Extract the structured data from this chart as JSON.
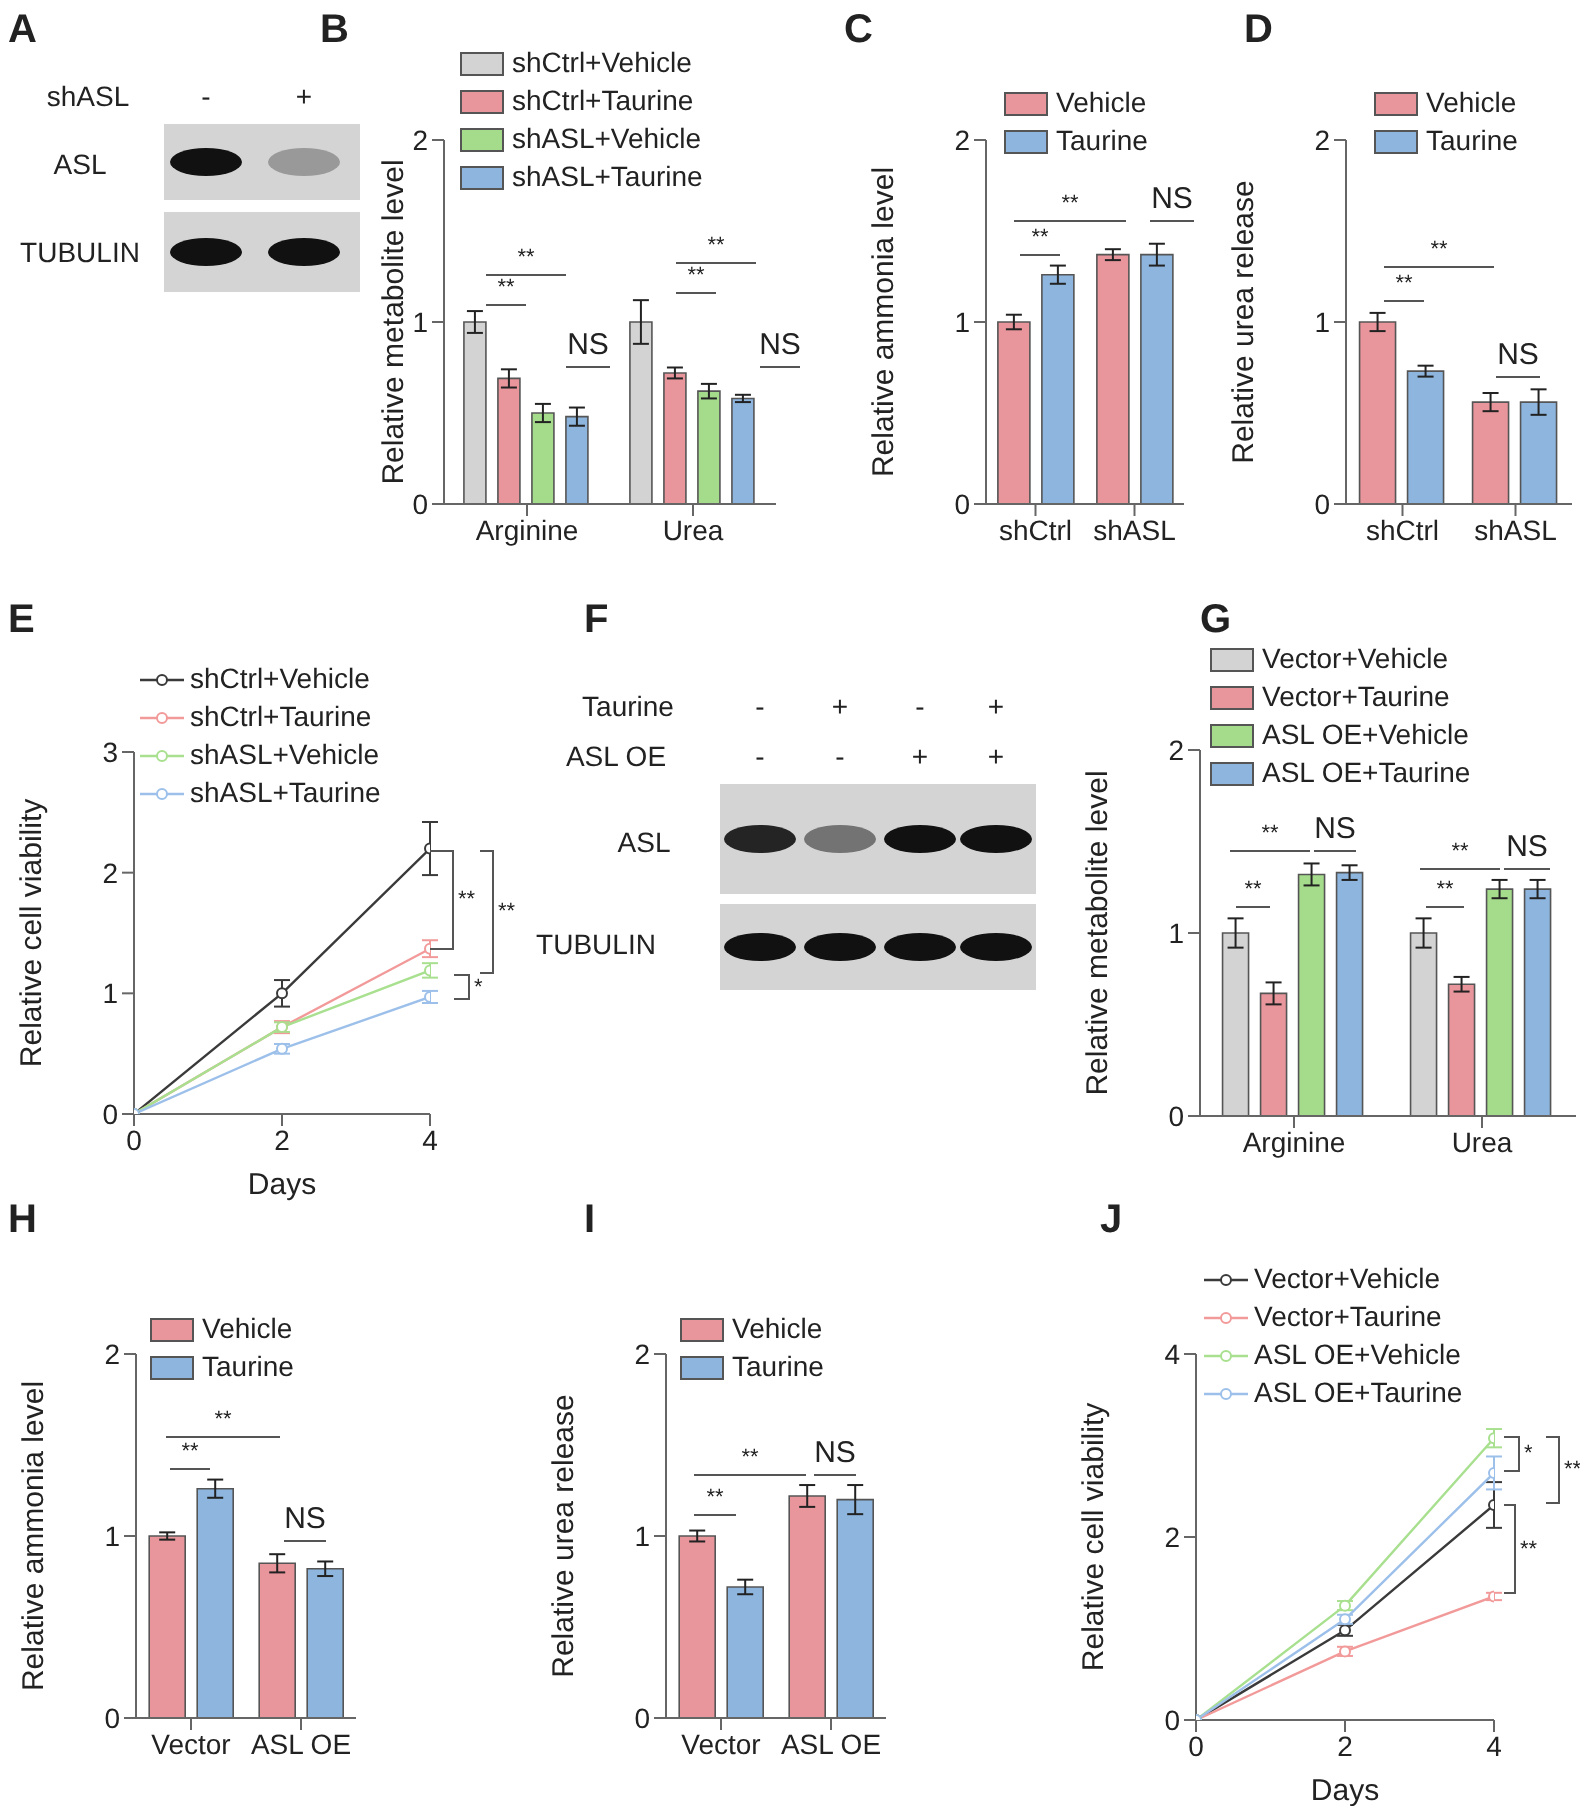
{
  "chart_data": [
    {
      "type": "other",
      "title": "A",
      "annotations": [
        "shASL",
        "-",
        "+",
        "ASL",
        "TUBULIN"
      ]
    },
    {
      "type": "bar",
      "title": "B",
      "ylabel": "Relative metabolite level",
      "categories": [
        "Arginine",
        "Urea"
      ],
      "ylim": [
        0,
        2
      ],
      "yticks": [
        0,
        1,
        2
      ],
      "legend": "top left",
      "annotations": [
        "**",
        "**",
        "NS",
        "**",
        "**",
        "NS"
      ],
      "series": [
        {
          "name": "shCtrl+Vehicle",
          "color": "#d3d3d3",
          "values": [
            1.0,
            1.0
          ],
          "errors": [
            0.06,
            0.12
          ]
        },
        {
          "name": "shCtrl+Taurine",
          "color": "#e8959c",
          "values": [
            0.69,
            0.72
          ],
          "errors": [
            0.05,
            0.03
          ]
        },
        {
          "name": "shASL+Vehicle",
          "color": "#a5dc8c",
          "values": [
            0.5,
            0.62
          ],
          "errors": [
            0.05,
            0.04
          ]
        },
        {
          "name": "shASL+Taurine",
          "color": "#8db5de",
          "values": [
            0.48,
            0.58
          ],
          "errors": [
            0.05,
            0.02
          ]
        }
      ]
    },
    {
      "type": "bar",
      "title": "C",
      "ylabel": "Relative ammonia level",
      "categories": [
        "shCtrl",
        "shASL"
      ],
      "ylim": [
        0,
        2
      ],
      "yticks": [
        0,
        1,
        2
      ],
      "legend": "top left",
      "annotations": [
        "**",
        "**",
        "NS"
      ],
      "series": [
        {
          "name": "Vehicle",
          "color": "#e8959c",
          "values": [
            1.0,
            1.37
          ],
          "errors": [
            0.04,
            0.03
          ]
        },
        {
          "name": "Taurine",
          "color": "#8db5de",
          "values": [
            1.26,
            1.37
          ],
          "errors": [
            0.05,
            0.06
          ]
        }
      ]
    },
    {
      "type": "bar",
      "title": "D",
      "ylabel": "Relative urea release",
      "categories": [
        "shCtrl",
        "shASL"
      ],
      "ylim": [
        0,
        2
      ],
      "yticks": [
        0,
        1,
        2
      ],
      "legend": "top left",
      "annotations": [
        "**",
        "**",
        "NS"
      ],
      "series": [
        {
          "name": "Vehicle",
          "color": "#e8959c",
          "values": [
            1.0,
            0.56
          ],
          "errors": [
            0.05,
            0.05
          ]
        },
        {
          "name": "Taurine",
          "color": "#8db5de",
          "values": [
            0.73,
            0.56
          ],
          "errors": [
            0.03,
            0.07
          ]
        }
      ]
    },
    {
      "type": "line",
      "title": "E",
      "xlabel": "Days",
      "ylabel": "Relative cell viability",
      "x": [
        0,
        2,
        4
      ],
      "xlim": [
        0,
        4
      ],
      "xticks": [
        0,
        2,
        4
      ],
      "ylim": [
        0,
        3
      ],
      "yticks": [
        0,
        1,
        2,
        3
      ],
      "legend": "top left",
      "marker": "circle",
      "annotations": [
        "**",
        "**",
        "*"
      ],
      "series": [
        {
          "name": "shCtrl+Vehicle",
          "color": "#3a3a3a",
          "values": [
            0,
            1.0,
            2.2
          ],
          "errors": [
            0,
            0.11,
            0.22
          ]
        },
        {
          "name": "shCtrl+Taurine",
          "color": "#f29a9a",
          "values": [
            0,
            0.72,
            1.37
          ],
          "errors": [
            0,
            0.05,
            0.07
          ]
        },
        {
          "name": "shASL+Vehicle",
          "color": "#a8e08f",
          "values": [
            0,
            0.72,
            1.19
          ],
          "errors": [
            0,
            0.04,
            0.06
          ]
        },
        {
          "name": "shASL+Taurine",
          "color": "#9cc0ea",
          "values": [
            0,
            0.54,
            0.97
          ],
          "errors": [
            0,
            0.04,
            0.05
          ]
        }
      ]
    },
    {
      "type": "other",
      "title": "F",
      "annotations": [
        "Taurine",
        "-",
        "+",
        "-",
        "+",
        "ASL OE",
        "-",
        "-",
        "+",
        "+",
        "ASL",
        "TUBULIN"
      ]
    },
    {
      "type": "bar",
      "title": "G",
      "ylabel": "Relative metabolite level",
      "categories": [
        "Arginine",
        "Urea"
      ],
      "ylim": [
        0,
        2
      ],
      "yticks": [
        0,
        1,
        2
      ],
      "legend": "top left",
      "annotations": [
        "**",
        "**",
        "NS",
        "**",
        "**",
        "NS"
      ],
      "series": [
        {
          "name": "Vector+Vehicle",
          "color": "#d3d3d3",
          "values": [
            1.0,
            1.0
          ],
          "errors": [
            0.08,
            0.08
          ]
        },
        {
          "name": "Vector+Taurine",
          "color": "#e8959c",
          "values": [
            0.67,
            0.72
          ],
          "errors": [
            0.06,
            0.04
          ]
        },
        {
          "name": "ASL OE+Vehicle",
          "color": "#a5dc8c",
          "values": [
            1.32,
            1.24
          ],
          "errors": [
            0.06,
            0.05
          ]
        },
        {
          "name": "ASL OE+Taurine",
          "color": "#8db5de",
          "values": [
            1.33,
            1.24
          ],
          "errors": [
            0.04,
            0.05
          ]
        }
      ]
    },
    {
      "type": "bar",
      "title": "H",
      "ylabel": "Relative ammonia level",
      "categories": [
        "Vector",
        "ASL OE"
      ],
      "ylim": [
        0,
        2
      ],
      "yticks": [
        0,
        1,
        2
      ],
      "legend": "top left",
      "annotations": [
        "**",
        "**",
        "NS"
      ],
      "series": [
        {
          "name": "Vehicle",
          "color": "#e8959c",
          "values": [
            1.0,
            0.85
          ],
          "errors": [
            0.02,
            0.05
          ]
        },
        {
          "name": "Taurine",
          "color": "#8db5de",
          "values": [
            1.26,
            0.82
          ],
          "errors": [
            0.05,
            0.04
          ]
        }
      ]
    },
    {
      "type": "bar",
      "title": "I",
      "ylabel": "Relative urea release",
      "categories": [
        "Vector",
        "ASL OE"
      ],
      "ylim": [
        0,
        2
      ],
      "yticks": [
        0,
        1,
        2
      ],
      "legend": "top left",
      "annotations": [
        "**",
        "**",
        "NS"
      ],
      "series": [
        {
          "name": "Vehicle",
          "color": "#e8959c",
          "values": [
            1.0,
            1.22
          ],
          "errors": [
            0.03,
            0.06
          ]
        },
        {
          "name": "Taurine",
          "color": "#8db5de",
          "values": [
            0.72,
            1.2
          ],
          "errors": [
            0.04,
            0.08
          ]
        }
      ]
    },
    {
      "type": "line",
      "title": "J",
      "xlabel": "Days",
      "ylabel": "Relative cell viability",
      "x": [
        0,
        2,
        4
      ],
      "xlim": [
        0,
        4
      ],
      "xticks": [
        0,
        2,
        4
      ],
      "ylim": [
        0,
        4
      ],
      "yticks": [
        0,
        2,
        4
      ],
      "legend": "top left",
      "marker": "circle",
      "annotations": [
        "*",
        "**",
        "**"
      ],
      "series": [
        {
          "name": "Vector+Vehicle",
          "color": "#3a3a3a",
          "values": [
            0,
            0.98,
            2.35
          ],
          "errors": [
            0,
            0.06,
            0.25
          ]
        },
        {
          "name": "Vector+Taurine",
          "color": "#f29a9a",
          "values": [
            0,
            0.75,
            1.35
          ],
          "errors": [
            0,
            0.05,
            0.04
          ]
        },
        {
          "name": "ASL OE+Vehicle",
          "color": "#a8e08f",
          "values": [
            0,
            1.25,
            3.08
          ],
          "errors": [
            0,
            0.05,
            0.1
          ]
        },
        {
          "name": "ASL OE+Taurine",
          "color": "#9cc0ea",
          "values": [
            0,
            1.1,
            2.7
          ],
          "errors": [
            0,
            0.05,
            0.18
          ]
        }
      ]
    }
  ]
}
